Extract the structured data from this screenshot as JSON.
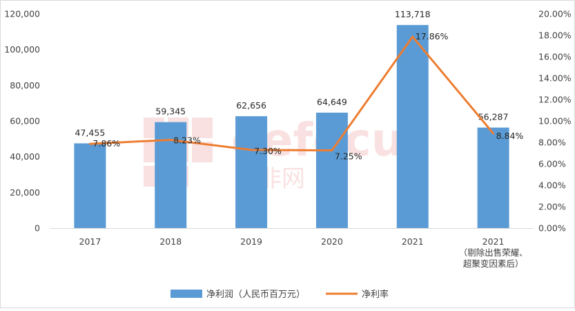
{
  "chart_data": {
    "type": "bar",
    "categories": [
      "2017",
      "2018",
      "2019",
      "2020",
      "2021",
      "2021\n（剔除出售荣耀、\n超聚变因素后）"
    ],
    "series": [
      {
        "name": "净利润（人民币百万元）",
        "type": "bar",
        "axis": "left",
        "values": [
          47455,
          59345,
          62656,
          64649,
          113718,
          56287
        ],
        "labels": [
          "47,455",
          "59,345",
          "62,656",
          "64,649",
          "113,718",
          "56,287"
        ]
      },
      {
        "name": "净利率",
        "type": "line",
        "axis": "right",
        "values": [
          7.86,
          8.23,
          7.3,
          7.25,
          17.86,
          8.84
        ],
        "labels": [
          "7.86%",
          "8.23%",
          "7.30%",
          "7.25%",
          "17.86%",
          "8.84%"
        ]
      }
    ],
    "y_left": {
      "range": [
        0,
        120000
      ],
      "ticks": [
        "0",
        "20,000",
        "40,000",
        "60,000",
        "80,000",
        "100,000",
        "120,000"
      ]
    },
    "y_right": {
      "range": [
        0,
        20
      ],
      "ticks": [
        "0.00%",
        "2.00%",
        "4.00%",
        "6.00%",
        "8.00%",
        "10.00%",
        "12.00%",
        "14.00%",
        "16.00%",
        "18.00%",
        "20.00%"
      ]
    },
    "legend": {
      "placement": "bottom-center"
    },
    "grid": false,
    "colors": {
      "bar": "#5b9bd5",
      "line": "#ed7d31",
      "axis_text": "#404040",
      "watermark": "#e06060"
    },
    "watermark": {
      "logo": "eefocus",
      "subtext": "与非网"
    }
  }
}
